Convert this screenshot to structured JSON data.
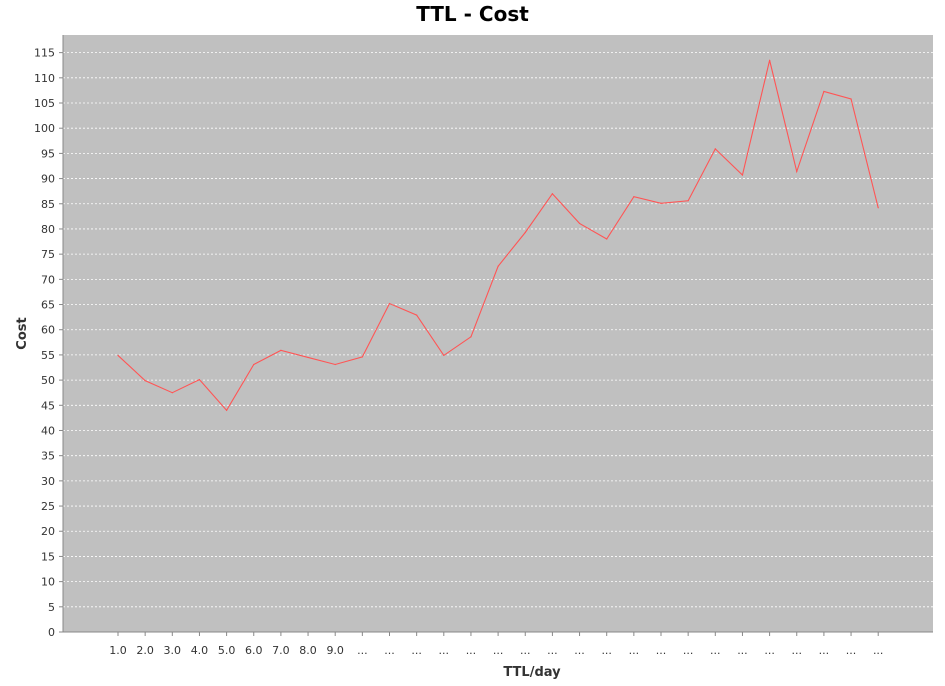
{
  "chart_data": {
    "type": "line",
    "title": "TTL - Cost",
    "xlabel": "TTL/day",
    "ylabel": "Cost",
    "categories": [
      "1.0",
      "2.0",
      "3.0",
      "4.0",
      "5.0",
      "6.0",
      "7.0",
      "8.0",
      "9.0",
      "...",
      "...",
      "...",
      "...",
      "...",
      "...",
      "...",
      "...",
      "...",
      "...",
      "...",
      "...",
      "...",
      "...",
      "...",
      "...",
      "...",
      "...",
      "...",
      "..."
    ],
    "series": [
      {
        "values": [
          54.9,
          49.9,
          47.5,
          50.1,
          44.0,
          53.1,
          55.9,
          54.5,
          53.1,
          54.6,
          65.2,
          62.9,
          54.9,
          58.6,
          72.6,
          79.3,
          87.0,
          81.1,
          78.0,
          86.4,
          85.1,
          85.6,
          95.9,
          90.7,
          113.5,
          91.4,
          107.3,
          105.8,
          84.2
        ]
      }
    ],
    "ylim": [
      0,
      118.5
    ],
    "yticks": [
      0,
      5,
      10,
      15,
      20,
      25,
      30,
      35,
      40,
      45,
      50,
      55,
      60,
      65,
      70,
      75,
      80,
      85,
      90,
      95,
      100,
      105,
      110,
      115
    ],
    "grid": true,
    "legend": "none",
    "colors": {
      "plot_background": "#c0c0c0",
      "series_line": "#ff5555",
      "gridline": "#ffffff",
      "axis": "#888888",
      "text": "#333333"
    }
  }
}
